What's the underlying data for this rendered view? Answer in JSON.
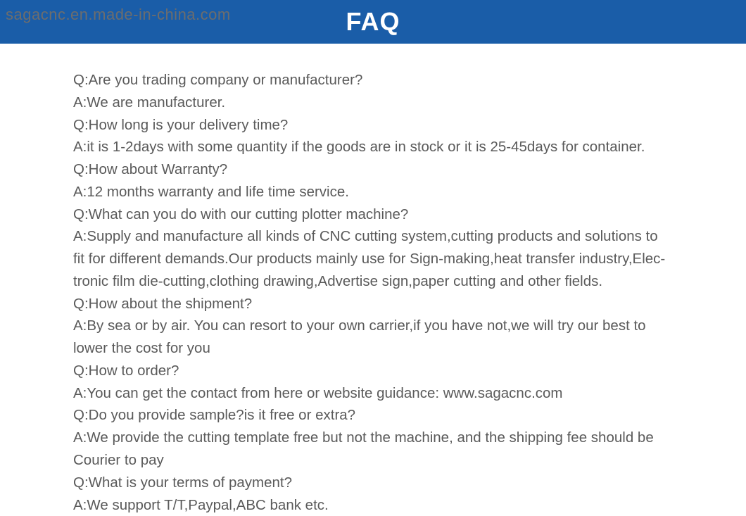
{
  "header": {
    "background_color": "#1a5da8",
    "watermark": "sagacnc.en.made-in-china.com",
    "watermark_color": "#6d6d6d",
    "title": "FAQ",
    "title_color": "#ffffff"
  },
  "content": {
    "text_color": "#5a5a5a",
    "lines": [
      "Q:Are you trading company or manufacturer?",
      "A:We are manufacturer.",
      "Q:How long is your delivery time?",
      "A:it is 1-2days with some quantity if the goods are in stock or it is 25-45days for container.",
      "Q:How about Warranty?",
      "A:12 months warranty and life time service.",
      "Q:What can you do with our cutting plotter machine?",
      "A:Supply and manufacture all kinds of CNC cutting system,cutting products and solutions to",
      "fit for different demands.Our products mainly use for Sign-making,heat transfer industry,Elec-",
      "tronic film die-cutting,clothing drawing,Advertise sign,paper cutting and other fields.",
      "Q:How about the shipment?",
      "A:By sea or by air. You can resort to your own carrier,if you have not,we will try our best to",
      "lower the cost for you",
      "Q:How to order?",
      "A:You can get the contact from here or website guidance: www.sagacnc.com",
      "Q:Do you provide sample?is it free or extra?",
      "A:We provide the cutting template free but not the machine, and the shipping fee should be",
      "Courier to pay",
      "Q:What is your terms of payment?",
      "A:We support T/T,Paypal,ABC bank etc."
    ]
  }
}
